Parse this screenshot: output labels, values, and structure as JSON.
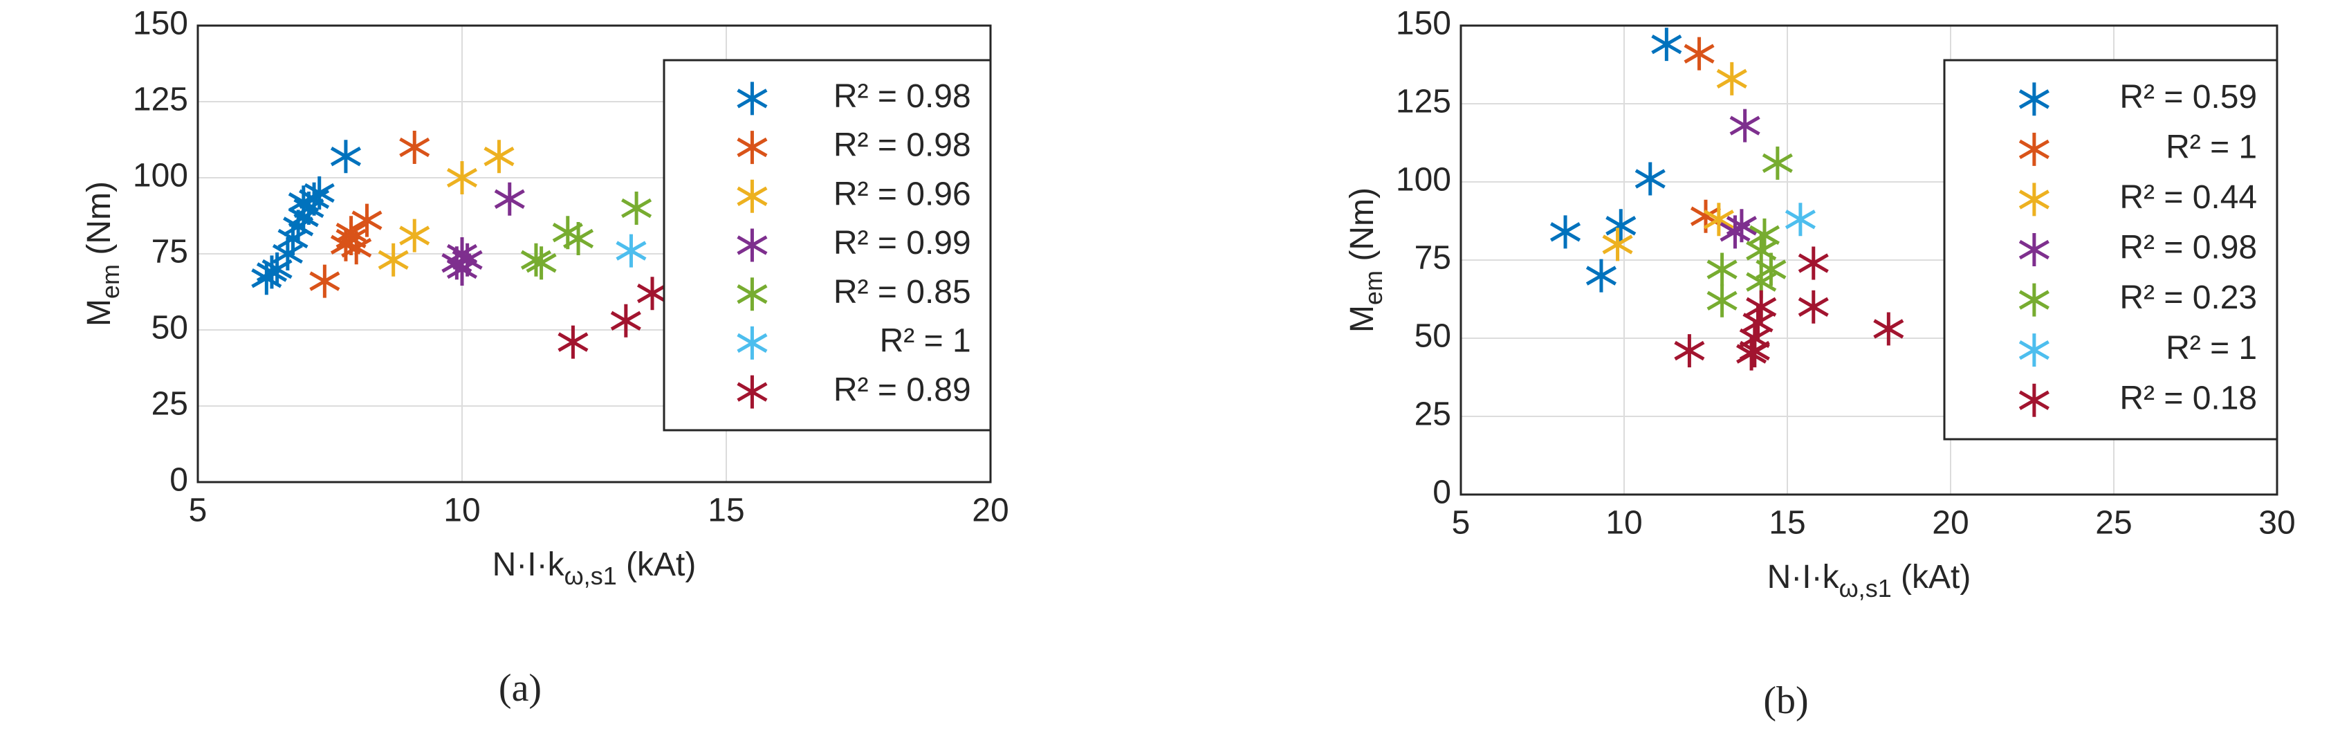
{
  "chart_data": [
    {
      "type": "scatter",
      "caption": "(a)",
      "xlabel": [
        "N·I·k",
        "ω,s1",
        " (kAt)"
      ],
      "ylabel": [
        "M",
        "em",
        " (Nm)"
      ],
      "xlim": [
        5,
        20
      ],
      "xticks": [
        5,
        10,
        15,
        20
      ],
      "ylim": [
        0,
        150
      ],
      "yticks": [
        0,
        25,
        50,
        75,
        100,
        125,
        150
      ],
      "grid": true,
      "legend": "upper right",
      "series": [
        {
          "name": "R² = 0.98",
          "color": "#0072bd",
          "x": [
            6.3,
            6.4,
            6.5,
            6.7,
            6.8,
            6.9,
            7.0,
            7.0,
            7.1,
            7.2,
            7.3,
            7.8
          ],
          "y": [
            67,
            69,
            70,
            75,
            80,
            84,
            87,
            92,
            90,
            93,
            95,
            107
          ]
        },
        {
          "name": "R² = 0.98",
          "color": "#d95319",
          "x": [
            7.4,
            7.8,
            7.9,
            8.0,
            7.9,
            8.2,
            9.1
          ],
          "y": [
            66,
            78,
            80,
            77,
            82,
            86,
            110
          ]
        },
        {
          "name": "R² = 0.96",
          "color": "#edb120",
          "x": [
            8.7,
            9.1,
            10.0,
            10.7
          ],
          "y": [
            73,
            81,
            100,
            107
          ]
        },
        {
          "name": "R² = 0.99",
          "color": "#7e2f8e",
          "x": [
            9.9,
            10.0,
            10.1,
            10.0,
            10.9
          ],
          "y": [
            72,
            75,
            73,
            70,
            93
          ]
        },
        {
          "name": "R² = 0.85",
          "color": "#77ac30",
          "x": [
            11.4,
            11.5,
            12.0,
            12.2,
            13.3
          ],
          "y": [
            73,
            72,
            82,
            80,
            90
          ]
        },
        {
          "name": "R² = 1",
          "color": "#4dbeee",
          "x": [
            13.2
          ],
          "y": [
            76
          ]
        },
        {
          "name": "R² = 0.89",
          "color": "#a2142f",
          "x": [
            12.1,
            13.1,
            13.6
          ],
          "y": [
            46,
            53,
            62
          ]
        }
      ]
    },
    {
      "type": "scatter",
      "caption": "(b)",
      "xlabel": [
        "N·I·k",
        "ω,s1",
        " (kAt)"
      ],
      "ylabel": [
        "M",
        "em",
        " (Nm)"
      ],
      "xlim": [
        5,
        30
      ],
      "xticks": [
        5,
        10,
        15,
        20,
        25,
        30
      ],
      "ylim": [
        0,
        150
      ],
      "yticks": [
        0,
        25,
        50,
        75,
        100,
        125,
        150
      ],
      "grid": true,
      "legend": "upper right",
      "series": [
        {
          "name": "R² = 0.59",
          "color": "#0072bd",
          "x": [
            8.2,
            9.3,
            9.9,
            10.8,
            11.3
          ],
          "y": [
            84,
            70,
            86,
            101,
            144
          ]
        },
        {
          "name": "R² = 1",
          "color": "#d95319",
          "x": [
            12.3,
            12.5
          ],
          "y": [
            141,
            89
          ]
        },
        {
          "name": "R² = 0.44",
          "color": "#edb120",
          "x": [
            9.8,
            12.9,
            13.3
          ],
          "y": [
            80,
            88,
            133
          ]
        },
        {
          "name": "R² = 0.98",
          "color": "#7e2f8e",
          "x": [
            13.4,
            13.6,
            13.7
          ],
          "y": [
            84,
            86,
            118
          ]
        },
        {
          "name": "R² = 0.23",
          "color": "#77ac30",
          "x": [
            13.0,
            13.0,
            14.2,
            14.3,
            14.5,
            14.7,
            14.2
          ],
          "y": [
            62,
            72,
            78,
            83,
            72,
            106,
            68
          ]
        },
        {
          "name": "R² = 1",
          "color": "#4dbeee",
          "x": [
            15.4
          ],
          "y": [
            88
          ]
        },
        {
          "name": "R² = 0.18",
          "color": "#a2142f",
          "x": [
            12.0,
            13.9,
            14.0,
            14.1,
            14.2,
            15.8,
            15.8,
            18.1,
            14.0
          ],
          "y": [
            46,
            45,
            50,
            55,
            60,
            60,
            74,
            53,
            46
          ]
        }
      ]
    }
  ]
}
